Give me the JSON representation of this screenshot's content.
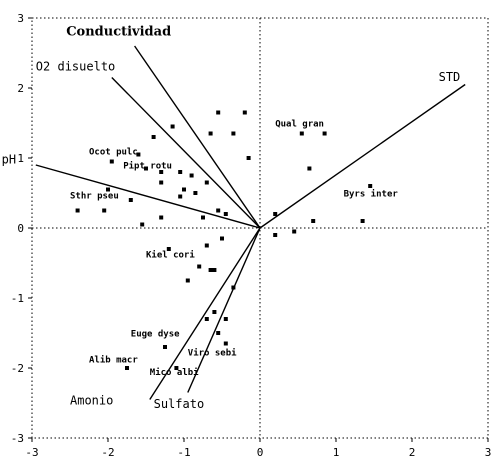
{
  "chart_data": {
    "type": "scatter",
    "subtype": "biplot",
    "xlim": [
      -3,
      3
    ],
    "ylim": [
      -3,
      3
    ],
    "x_ticks": [
      "-3",
      "-2",
      "-1",
      "0",
      "1",
      "2",
      "3"
    ],
    "y_ticks": [
      "-3",
      "-2",
      "-1",
      "0",
      "1",
      "2",
      "3"
    ],
    "frame_style": "dotted",
    "zero_lines": "dotted",
    "vectors": [
      {
        "label": "Conductividad",
        "x": -1.65,
        "y": 2.6,
        "label_style": "bold"
      },
      {
        "label": "O2 disuelto",
        "x": -1.95,
        "y": 2.15
      },
      {
        "label": "pH",
        "x": -2.95,
        "y": 0.9
      },
      {
        "label": "STD",
        "x": 2.7,
        "y": 2.05
      },
      {
        "label": "Amonio",
        "x": -1.45,
        "y": -2.45
      },
      {
        "label": "Sulfato",
        "x": -0.95,
        "y": -2.35
      }
    ],
    "points": [
      [
        -1.15,
        1.45
      ],
      [
        -0.55,
        1.65
      ],
      [
        -0.2,
        1.65
      ],
      [
        -0.65,
        1.35
      ],
      [
        -0.35,
        1.35
      ],
      [
        -0.15,
        1.0
      ],
      [
        -1.4,
        1.3
      ],
      [
        -1.6,
        1.05
      ],
      [
        -1.95,
        0.95
      ],
      [
        -1.5,
        0.85
      ],
      [
        -1.3,
        0.8
      ],
      [
        -1.05,
        0.8
      ],
      [
        -0.9,
        0.75
      ],
      [
        -1.3,
        0.65
      ],
      [
        -1.0,
        0.55
      ],
      [
        -0.85,
        0.5
      ],
      [
        -0.7,
        0.65
      ],
      [
        -1.05,
        0.45
      ],
      [
        -1.7,
        0.4
      ],
      [
        -2.0,
        0.55
      ],
      [
        -2.4,
        0.25
      ],
      [
        -2.05,
        0.25
      ],
      [
        -1.3,
        0.15
      ],
      [
        -0.75,
        0.15
      ],
      [
        -1.55,
        0.05
      ],
      [
        -0.55,
        0.25
      ],
      [
        -0.45,
        0.2
      ],
      [
        -0.5,
        -0.15
      ],
      [
        -0.7,
        -0.25
      ],
      [
        -1.2,
        -0.3
      ],
      [
        -0.8,
        -0.55
      ],
      [
        -0.6,
        -0.6
      ],
      [
        -0.65,
        -0.6
      ],
      [
        -0.95,
        -0.75
      ],
      [
        -0.35,
        -0.85
      ],
      [
        -0.6,
        -1.2
      ],
      [
        -0.7,
        -1.3
      ],
      [
        -0.55,
        -1.5
      ],
      [
        -0.45,
        -1.3
      ],
      [
        -0.45,
        -1.65
      ],
      [
        -1.25,
        -1.7
      ],
      [
        -1.1,
        -2.0
      ],
      [
        -1.75,
        -2.0
      ],
      [
        0.2,
        0.2
      ],
      [
        0.2,
        -0.1
      ],
      [
        0.45,
        -0.05
      ],
      [
        0.55,
        1.35
      ],
      [
        0.85,
        1.35
      ],
      [
        0.65,
        0.85
      ],
      [
        0.7,
        0.1
      ],
      [
        1.35,
        0.1
      ],
      [
        1.45,
        0.6
      ]
    ],
    "species_labels": [
      {
        "text": "Qual gran",
        "x": 0.2,
        "y": 1.45
      },
      {
        "text": "Ocot pulc",
        "x": -2.25,
        "y": 1.05
      },
      {
        "text": "Pipt rotu",
        "x": -1.8,
        "y": 0.85
      },
      {
        "text": "Sthr pseu",
        "x": -2.5,
        "y": 0.42
      },
      {
        "text": "Byrs inter",
        "x": 1.1,
        "y": 0.45
      },
      {
        "text": "Kiel cori",
        "x": -1.5,
        "y": -0.42
      },
      {
        "text": "Euge dyse",
        "x": -1.7,
        "y": -1.55
      },
      {
        "text": "Viro sebi",
        "x": -0.95,
        "y": -1.82
      },
      {
        "text": "Alib macr",
        "x": -2.25,
        "y": -1.92
      },
      {
        "text": "Mico albi",
        "x": -1.45,
        "y": -2.1
      }
    ],
    "vector_label_positions": {
      "Conductividad": [
        -2.55,
        2.75
      ],
      "O2 disuelto": [
        -2.95,
        2.25
      ],
      "pH": [
        -3.4,
        0.92
      ],
      "STD": [
        2.35,
        2.1
      ],
      "Amonio": [
        -2.5,
        -2.52
      ],
      "Sulfato": [
        -1.4,
        -2.57
      ]
    }
  }
}
